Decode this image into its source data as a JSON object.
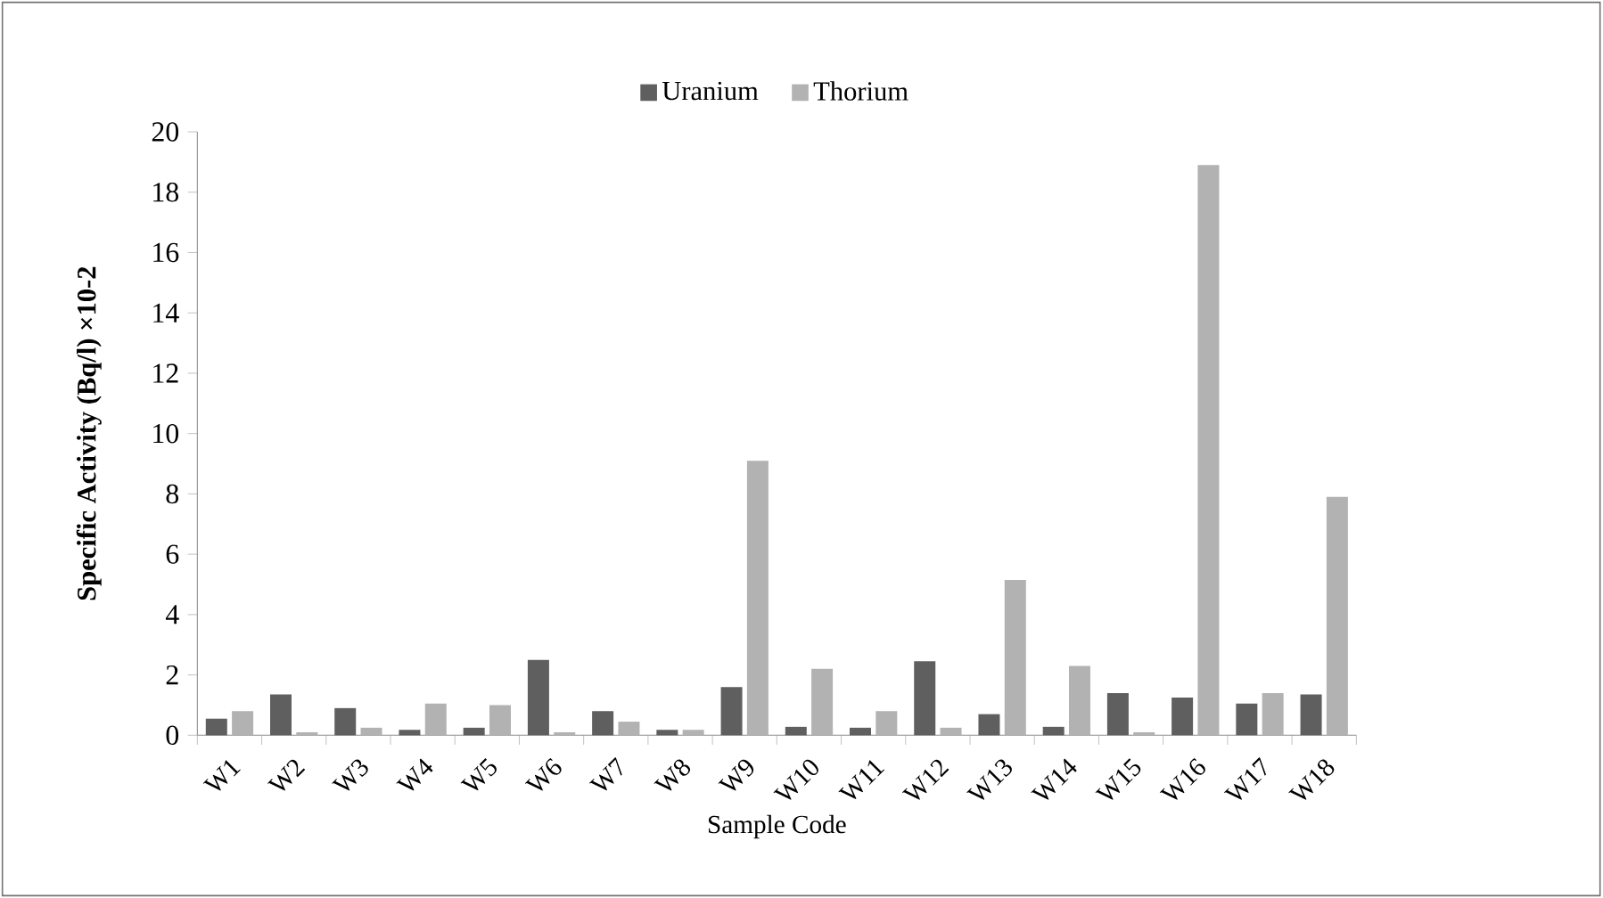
{
  "chart_data": {
    "type": "bar",
    "ylabel": "Specific Activity (Bq/l) ×10-2",
    "xlabel": "Sample Code",
    "categories": [
      "W1",
      "W2",
      "W3",
      "W4",
      "W5",
      "W6",
      "W7",
      "W8",
      "W9",
      "W10",
      "W11",
      "W12",
      "W13",
      "W14",
      "W15",
      "W16",
      "W17",
      "W18"
    ],
    "series": [
      {
        "name": "Uranium",
        "color": "#5f5f5f",
        "values": [
          0.55,
          1.35,
          0.9,
          0.18,
          0.25,
          2.5,
          0.8,
          0.18,
          1.6,
          0.28,
          0.25,
          2.45,
          0.7,
          0.28,
          1.4,
          1.25,
          1.05,
          1.35
        ]
      },
      {
        "name": "Thorium",
        "color": "#b2b2b2",
        "values": [
          0.8,
          0.1,
          0.25,
          1.05,
          1.0,
          0.1,
          0.45,
          0.18,
          9.1,
          2.2,
          0.8,
          0.25,
          5.15,
          2.3,
          0.1,
          18.9,
          1.4,
          7.9
        ]
      }
    ],
    "ylim": [
      0,
      20
    ],
    "yticks": [
      0,
      2,
      4,
      6,
      8,
      10,
      12,
      14,
      16,
      18,
      20
    ],
    "grid": false,
    "legend": "top"
  }
}
